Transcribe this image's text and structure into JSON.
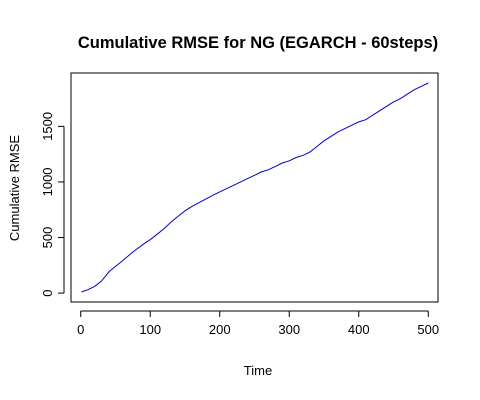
{
  "chart_data": {
    "type": "line",
    "title": "Cumulative RMSE for NG (EGARCH - 60steps)",
    "xlabel": "Time",
    "ylabel": "Cumulative RMSE",
    "xlim": [
      -14,
      514
    ],
    "ylim": [
      -80,
      1980
    ],
    "xticks": [
      0,
      100,
      200,
      300,
      400,
      500
    ],
    "yticks": [
      0,
      500,
      1000,
      1500
    ],
    "grid": false,
    "line_color": "#0000cc",
    "series": [
      {
        "x": [
          1,
          10,
          20,
          30,
          38,
          42,
          50,
          60,
          75,
          90,
          100,
          110,
          120,
          130,
          140,
          150,
          160,
          175,
          190,
          200,
          210,
          220,
          230,
          240,
          250,
          260,
          270,
          280,
          290,
          300,
          310,
          320,
          330,
          340,
          350,
          360,
          370,
          380,
          390,
          400,
          410,
          420,
          430,
          440,
          450,
          460,
          470,
          480,
          490,
          500
        ],
        "y": [
          10,
          30,
          60,
          110,
          170,
          200,
          240,
          290,
          370,
          440,
          480,
          530,
          580,
          640,
          690,
          740,
          780,
          830,
          880,
          910,
          940,
          970,
          1000,
          1030,
          1060,
          1090,
          1110,
          1140,
          1170,
          1190,
          1220,
          1240,
          1270,
          1320,
          1370,
          1410,
          1450,
          1480,
          1510,
          1540,
          1560,
          1600,
          1640,
          1680,
          1720,
          1750,
          1790,
          1830,
          1860,
          1890
        ]
      }
    ]
  }
}
